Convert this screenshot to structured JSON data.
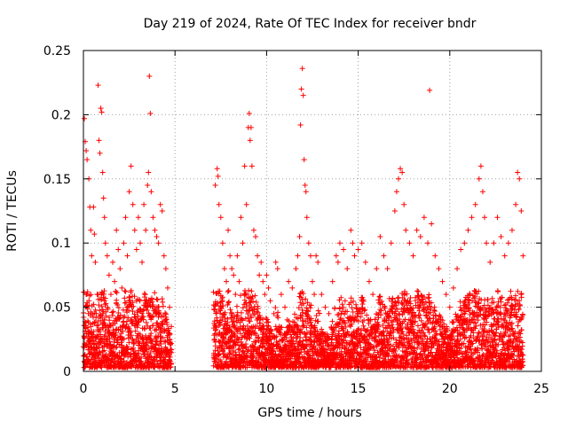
{
  "chart_data": {
    "type": "scatter",
    "title": "Day 219 of 2024, Rate Of TEC Index for receiver bndr",
    "xlabel": "GPS time / hours",
    "ylabel": "ROTI / TECUs",
    "xlim": [
      0,
      25
    ],
    "ylim": [
      0,
      0.25
    ],
    "x_ticks": [
      0,
      5,
      10,
      15,
      20,
      25
    ],
    "x_tick_labels": [
      "0",
      "5",
      "10",
      "15",
      "20",
      "25"
    ],
    "y_ticks": [
      0,
      0.05,
      0.1,
      0.15,
      0.2,
      0.25
    ],
    "y_tick_labels": [
      "0",
      "0.05",
      "0.1",
      "0.15",
      "0.2",
      "0.25"
    ],
    "grid": true,
    "legend": "none",
    "marker": "plus",
    "colors": {
      "points": "#ff0000",
      "grid": "#a0a0a0",
      "axes": "#000000"
    },
    "series": [
      {
        "points": [
          [
            0.05,
            0.197
          ],
          [
            0.1,
            0.179
          ],
          [
            0.15,
            0.172
          ],
          [
            0.2,
            0.165
          ],
          [
            0.3,
            0.15
          ],
          [
            0.35,
            0.128
          ],
          [
            0.4,
            0.11
          ],
          [
            0.45,
            0.09
          ],
          [
            0.55,
            0.128
          ],
          [
            0.6,
            0.107
          ],
          [
            0.65,
            0.085
          ],
          [
            0.75,
            0.06
          ],
          [
            0.8,
            0.223
          ],
          [
            0.85,
            0.18
          ],
          [
            0.9,
            0.17
          ],
          [
            0.95,
            0.205
          ],
          [
            1.0,
            0.202
          ],
          [
            1.05,
            0.155
          ],
          [
            1.1,
            0.135
          ],
          [
            1.15,
            0.12
          ],
          [
            1.2,
            0.1
          ],
          [
            1.3,
            0.09
          ],
          [
            1.4,
            0.075
          ],
          [
            1.5,
            0.06
          ],
          [
            1.6,
            0.085
          ],
          [
            1.7,
            0.07
          ],
          [
            1.8,
            0.11
          ],
          [
            1.9,
            0.095
          ],
          [
            2.0,
            0.08
          ],
          [
            2.1,
            0.065
          ],
          [
            2.2,
            0.1
          ],
          [
            2.3,
            0.12
          ],
          [
            2.4,
            0.09
          ],
          [
            2.5,
            0.14
          ],
          [
            2.6,
            0.16
          ],
          [
            2.7,
            0.13
          ],
          [
            2.8,
            0.11
          ],
          [
            2.9,
            0.095
          ],
          [
            3.0,
            0.12
          ],
          [
            3.1,
            0.1
          ],
          [
            3.2,
            0.085
          ],
          [
            3.3,
            0.13
          ],
          [
            3.4,
            0.11
          ],
          [
            3.5,
            0.145
          ],
          [
            3.55,
            0.155
          ],
          [
            3.6,
            0.23
          ],
          [
            3.65,
            0.201
          ],
          [
            3.7,
            0.14
          ],
          [
            3.8,
            0.12
          ],
          [
            3.9,
            0.11
          ],
          [
            4.0,
            0.105
          ],
          [
            4.1,
            0.1
          ],
          [
            4.2,
            0.13
          ],
          [
            4.3,
            0.125
          ],
          [
            4.4,
            0.09
          ],
          [
            4.5,
            0.08
          ],
          [
            4.6,
            0.065
          ],
          [
            4.7,
            0.05
          ],
          [
            4.8,
            0.035
          ],
          [
            7.2,
            0.145
          ],
          [
            7.3,
            0.158
          ],
          [
            7.35,
            0.152
          ],
          [
            7.4,
            0.13
          ],
          [
            7.5,
            0.12
          ],
          [
            7.6,
            0.1
          ],
          [
            7.7,
            0.08
          ],
          [
            7.8,
            0.07
          ],
          [
            7.9,
            0.11
          ],
          [
            8.0,
            0.09
          ],
          [
            8.1,
            0.08
          ],
          [
            8.2,
            0.075
          ],
          [
            8.3,
            0.06
          ],
          [
            8.4,
            0.09
          ],
          [
            8.5,
            0.07
          ],
          [
            8.6,
            0.12
          ],
          [
            8.7,
            0.1
          ],
          [
            8.8,
            0.16
          ],
          [
            8.9,
            0.13
          ],
          [
            9.0,
            0.19
          ],
          [
            9.05,
            0.201
          ],
          [
            9.1,
            0.18
          ],
          [
            9.15,
            0.19
          ],
          [
            9.2,
            0.16
          ],
          [
            9.3,
            0.11
          ],
          [
            9.4,
            0.105
          ],
          [
            9.5,
            0.09
          ],
          [
            9.6,
            0.075
          ],
          [
            9.7,
            0.085
          ],
          [
            9.8,
            0.07
          ],
          [
            9.9,
            0.06
          ],
          [
            10.0,
            0.075
          ],
          [
            10.1,
            0.065
          ],
          [
            10.2,
            0.055
          ],
          [
            10.4,
            0.045
          ],
          [
            10.5,
            0.085
          ],
          [
            10.6,
            0.08
          ],
          [
            10.8,
            0.06
          ],
          [
            11.0,
            0.05
          ],
          [
            11.2,
            0.07
          ],
          [
            11.4,
            0.065
          ],
          [
            11.6,
            0.08
          ],
          [
            11.7,
            0.09
          ],
          [
            11.8,
            0.105
          ],
          [
            11.85,
            0.192
          ],
          [
            11.9,
            0.22
          ],
          [
            11.95,
            0.236
          ],
          [
            12.0,
            0.215
          ],
          [
            12.05,
            0.165
          ],
          [
            12.1,
            0.145
          ],
          [
            12.15,
            0.14
          ],
          [
            12.2,
            0.12
          ],
          [
            12.3,
            0.1
          ],
          [
            12.4,
            0.09
          ],
          [
            12.5,
            0.07
          ],
          [
            12.6,
            0.06
          ],
          [
            12.7,
            0.09
          ],
          [
            12.8,
            0.085
          ],
          [
            13.0,
            0.06
          ],
          [
            13.2,
            0.05
          ],
          [
            13.4,
            0.045
          ],
          [
            13.6,
            0.07
          ],
          [
            13.8,
            0.09
          ],
          [
            13.9,
            0.085
          ],
          [
            14.0,
            0.1
          ],
          [
            14.2,
            0.095
          ],
          [
            14.4,
            0.08
          ],
          [
            14.6,
            0.11
          ],
          [
            14.7,
            0.1
          ],
          [
            14.8,
            0.09
          ],
          [
            15.0,
            0.095
          ],
          [
            15.2,
            0.1
          ],
          [
            15.4,
            0.085
          ],
          [
            15.6,
            0.07
          ],
          [
            15.8,
            0.06
          ],
          [
            16.0,
            0.08
          ],
          [
            16.2,
            0.105
          ],
          [
            16.4,
            0.09
          ],
          [
            16.6,
            0.08
          ],
          [
            16.8,
            0.1
          ],
          [
            17.0,
            0.125
          ],
          [
            17.1,
            0.14
          ],
          [
            17.2,
            0.15
          ],
          [
            17.3,
            0.158
          ],
          [
            17.4,
            0.155
          ],
          [
            17.5,
            0.13
          ],
          [
            17.6,
            0.11
          ],
          [
            17.8,
            0.1
          ],
          [
            18.0,
            0.09
          ],
          [
            18.2,
            0.11
          ],
          [
            18.4,
            0.105
          ],
          [
            18.6,
            0.12
          ],
          [
            18.8,
            0.1
          ],
          [
            18.9,
            0.219
          ],
          [
            19.0,
            0.115
          ],
          [
            19.2,
            0.09
          ],
          [
            19.4,
            0.08
          ],
          [
            19.6,
            0.07
          ],
          [
            19.8,
            0.06
          ],
          [
            20.0,
            0.05
          ],
          [
            20.2,
            0.065
          ],
          [
            20.4,
            0.08
          ],
          [
            20.6,
            0.095
          ],
          [
            20.8,
            0.1
          ],
          [
            21.0,
            0.11
          ],
          [
            21.2,
            0.12
          ],
          [
            21.4,
            0.13
          ],
          [
            21.6,
            0.15
          ],
          [
            21.7,
            0.16
          ],
          [
            21.8,
            0.14
          ],
          [
            21.9,
            0.12
          ],
          [
            22.0,
            0.1
          ],
          [
            22.2,
            0.085
          ],
          [
            22.4,
            0.1
          ],
          [
            22.6,
            0.12
          ],
          [
            22.8,
            0.105
          ],
          [
            23.0,
            0.09
          ],
          [
            23.2,
            0.1
          ],
          [
            23.4,
            0.11
          ],
          [
            23.6,
            0.13
          ],
          [
            23.7,
            0.155
          ],
          [
            23.8,
            0.15
          ],
          [
            23.9,
            0.125
          ],
          [
            24.0,
            0.09
          ]
        ]
      }
    ]
  }
}
